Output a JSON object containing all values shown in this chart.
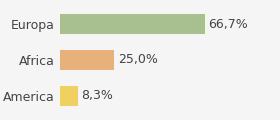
{
  "categories": [
    "America",
    "Africa",
    "Europa"
  ],
  "values": [
    8.3,
    25.0,
    66.7
  ],
  "labels": [
    "8,3%",
    "25,0%",
    "66,7%"
  ],
  "bar_colors": [
    "#f0d060",
    "#e8b07a",
    "#a8bf8f"
  ],
  "background_color": "#f5f5f5",
  "xlim": [
    0,
    100
  ],
  "bar_height": 0.55,
  "label_fontsize": 9,
  "tick_fontsize": 9
}
